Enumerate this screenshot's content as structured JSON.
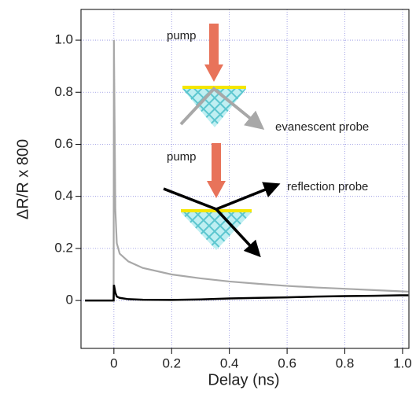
{
  "chart_data": {
    "type": "line",
    "xlabel": "Delay (ns)",
    "ylabel": "ΔR/R x 800",
    "x": [
      -0.1,
      -0.05,
      -0.001,
      0,
      0.005,
      0.01,
      0.02,
      0.05,
      0.1,
      0.2,
      0.3,
      0.4,
      0.5,
      0.6,
      0.7,
      0.8,
      0.9,
      1.0,
      1.02
    ],
    "series": [
      {
        "color": "#a8a8a8",
        "values": [
          0,
          0,
          0,
          1.0,
          0.35,
          0.22,
          0.18,
          0.15,
          0.125,
          0.1,
          0.085,
          0.073,
          0.064,
          0.056,
          0.05,
          0.045,
          0.04,
          0.035,
          0.034
        ]
      },
      {
        "color": "#000000",
        "values": [
          0,
          0,
          0,
          0.06,
          0.03,
          0.015,
          0.01,
          0.005,
          0.003,
          0.002,
          0.004,
          0.008,
          0.01,
          0.012,
          0.015,
          0.017,
          0.018,
          0.02,
          0.02
        ]
      }
    ],
    "xlim": [
      -0.114,
      1.022
    ],
    "ylim": [
      -0.184,
      1.118
    ],
    "xticks": [
      0,
      0.2,
      0.4,
      0.6,
      0.8,
      {
        "value": 1,
        "label": "1.0"
      }
    ],
    "yticks": [
      0,
      0.2,
      0.4,
      0.6,
      0.8,
      {
        "value": 1,
        "label": "1.0"
      }
    ],
    "grid": true,
    "annotations": [
      "pump",
      "evanescent probe",
      "pump",
      "reflection probe"
    ]
  }
}
